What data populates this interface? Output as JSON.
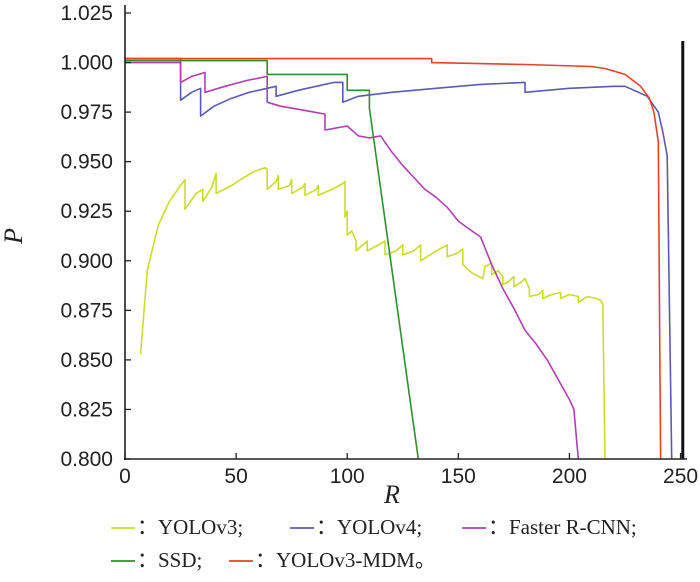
{
  "chart_data": {
    "type": "line",
    "title": "",
    "xlabel": "R",
    "ylabel": "P",
    "xlim": [
      0,
      252
    ],
    "ylim": [
      0.8,
      1.025
    ],
    "x_ticks": [
      0,
      50,
      100,
      150,
      200,
      250
    ],
    "x_tick_labels": [
      "0",
      "50",
      "100",
      "150",
      "200",
      "250"
    ],
    "y_ticks": [
      0.8,
      0.825,
      0.85,
      0.875,
      0.9,
      0.925,
      0.95,
      0.975,
      1.0,
      1.025
    ],
    "y_tick_labels": [
      "0.800",
      "0.825",
      "0.850",
      "0.875",
      "0.900",
      "0.925",
      "0.950",
      "0.975",
      "1.000",
      "1.025"
    ],
    "grid": false,
    "legend_position": "bottom",
    "legend_rows": [
      [
        {
          "series": "YOLOv3",
          "text": "：YOLOv3;"
        },
        {
          "series": "YOLOv4",
          "text": "：YOLOv4;"
        },
        {
          "series": "Faster R-CNN",
          "text": "：Faster R-CNN;"
        }
      ],
      [
        {
          "series": "SSD",
          "text": "：SSD;"
        },
        {
          "series": "YOLOv3-MDM",
          "text": "：YOLOv3-MDM。"
        }
      ]
    ],
    "series": [
      {
        "name": "YOLOv3",
        "color": "#c8de2a",
        "x": [
          7,
          10,
          15,
          20,
          25,
          27,
          27,
          32,
          35,
          35,
          39,
          41,
          41,
          48,
          52,
          58,
          63,
          64,
          64,
          68,
          69,
          69,
          74,
          75,
          75,
          80,
          81,
          81,
          86,
          87,
          87,
          93,
          98,
          99,
          99,
          100,
          100,
          102,
          104,
          104,
          107,
          109,
          109,
          114,
          117,
          117,
          122,
          125,
          125,
          130,
          133,
          133,
          140,
          145,
          145,
          150,
          152,
          152,
          156,
          161,
          162,
          165,
          165,
          168,
          170,
          170,
          172,
          175,
          175,
          178,
          180,
          182,
          182,
          186,
          188,
          188,
          192,
          196,
          196,
          200,
          204,
          204,
          208,
          212,
          214,
          215,
          216
        ],
        "y": [
          0.853,
          0.895,
          0.918,
          0.93,
          0.938,
          0.941,
          0.926,
          0.934,
          0.936,
          0.93,
          0.937,
          0.944,
          0.934,
          0.938,
          0.941,
          0.945,
          0.947,
          0.946,
          0.936,
          0.94,
          0.943,
          0.936,
          0.938,
          0.941,
          0.934,
          0.937,
          0.939,
          0.933,
          0.936,
          0.938,
          0.933,
          0.936,
          0.939,
          0.94,
          0.922,
          0.925,
          0.913,
          0.915,
          0.91,
          0.905,
          0.908,
          0.91,
          0.905,
          0.908,
          0.91,
          0.903,
          0.905,
          0.908,
          0.903,
          0.905,
          0.908,
          0.9,
          0.905,
          0.908,
          0.902,
          0.904,
          0.906,
          0.898,
          0.894,
          0.891,
          0.897,
          0.899,
          0.893,
          0.895,
          0.892,
          0.888,
          0.889,
          0.892,
          0.887,
          0.889,
          0.891,
          0.886,
          0.882,
          0.883,
          0.885,
          0.881,
          0.883,
          0.884,
          0.881,
          0.883,
          0.882,
          0.879,
          0.882,
          0.881,
          0.88,
          0.878,
          0.8
        ]
      },
      {
        "name": "YOLOv4",
        "color": "#5a5ab4",
        "x": [
          0,
          25,
          25,
          30,
          34,
          34,
          40,
          48,
          56,
          64,
          68,
          68,
          78,
          86,
          94,
          98,
          98,
          105,
          120,
          140,
          160,
          180,
          180,
          200,
          220,
          225,
          235,
          240,
          242,
          244,
          246
        ],
        "y": [
          1.002,
          1.002,
          0.981,
          0.985,
          0.987,
          0.973,
          0.978,
          0.982,
          0.985,
          0.987,
          0.988,
          0.983,
          0.986,
          0.988,
          0.99,
          0.99,
          0.98,
          0.983,
          0.985,
          0.987,
          0.989,
          0.99,
          0.985,
          0.987,
          0.988,
          0.988,
          0.983,
          0.975,
          0.965,
          0.953,
          0.8
        ]
      },
      {
        "name": "Faster R-CNN",
        "color": "#b13fb1",
        "x": [
          0,
          25,
          25,
          30,
          36,
          36,
          45,
          55,
          64,
          64,
          70,
          80,
          90,
          90,
          100,
          105,
          110,
          115,
          120,
          125,
          130,
          135,
          140,
          145,
          150,
          155,
          160,
          165,
          170,
          175,
          180,
          185,
          190,
          195,
          200,
          202,
          204
        ],
        "y": [
          1.0,
          1.0,
          0.99,
          0.993,
          0.995,
          0.985,
          0.988,
          0.991,
          0.993,
          0.98,
          0.978,
          0.976,
          0.974,
          0.966,
          0.968,
          0.963,
          0.962,
          0.963,
          0.955,
          0.948,
          0.942,
          0.936,
          0.932,
          0.927,
          0.92,
          0.916,
          0.912,
          0.898,
          0.886,
          0.876,
          0.865,
          0.858,
          0.85,
          0.84,
          0.83,
          0.825,
          0.8
        ]
      },
      {
        "name": "SSD",
        "color": "#2e8f2e",
        "x": [
          0,
          64,
          64,
          100,
          100,
          110,
          110,
          132
        ],
        "y": [
          1.001,
          1.001,
          0.994,
          0.994,
          0.986,
          0.986,
          0.977,
          0.8
        ]
      },
      {
        "name": "YOLOv3-MDM",
        "color": "#e8412a",
        "x": [
          0,
          138,
          138,
          180,
          210,
          216,
          225,
          232,
          236,
          238,
          240,
          241
        ],
        "y": [
          1.002,
          1.002,
          1.0,
          0.999,
          0.998,
          0.997,
          0.994,
          0.988,
          0.982,
          0.975,
          0.96,
          0.8
        ]
      }
    ],
    "annotations": [
      {
        "type": "vertical_line",
        "x": 251,
        "color": "#111111"
      }
    ]
  }
}
